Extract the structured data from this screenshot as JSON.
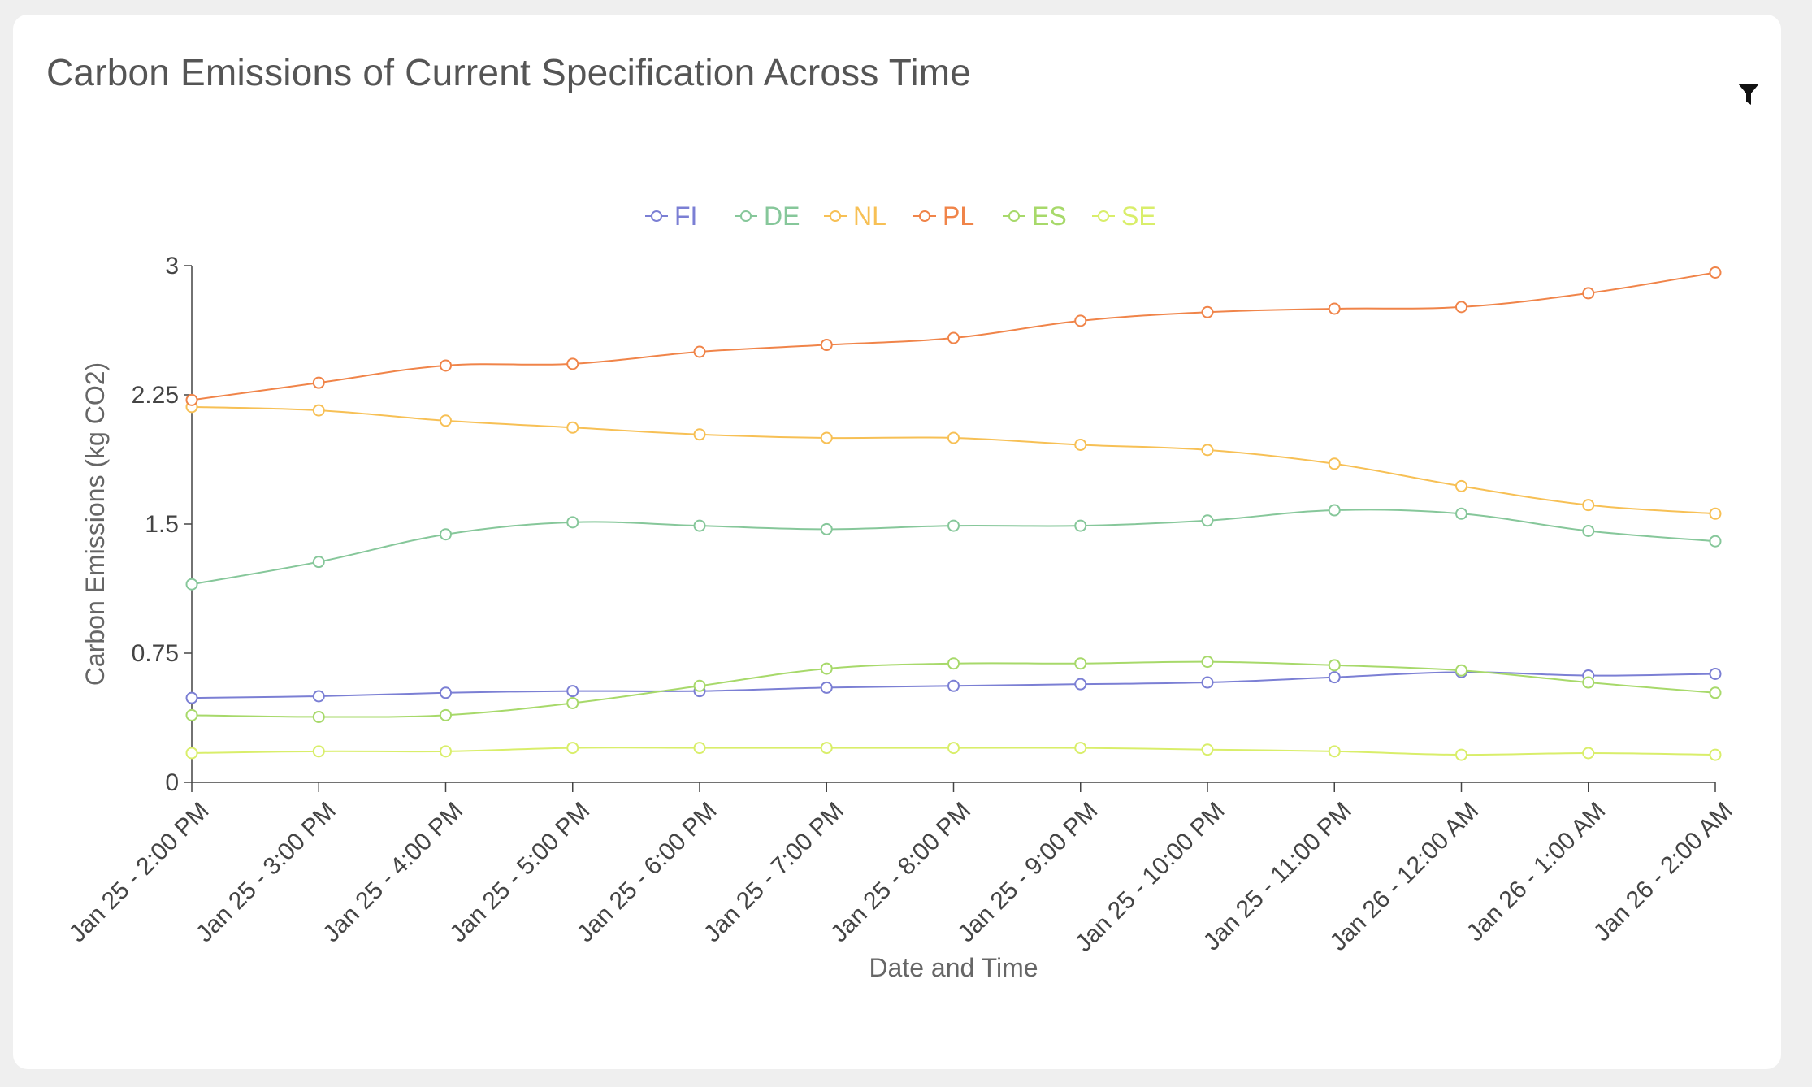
{
  "card": {
    "title": "Carbon Emissions of Current Specification Across Time",
    "filter_icon": "filter-icon"
  },
  "chart_data": {
    "type": "line",
    "title": "Carbon Emissions of Current Specification Across Time",
    "xlabel": "Date and Time",
    "ylabel": "Carbon Emissions (kg CO2)",
    "ylim": [
      0,
      3
    ],
    "yticks": [
      0,
      0.75,
      1.5,
      2.25,
      3
    ],
    "ytick_labels": [
      "0",
      "0.75",
      "1.5",
      "2.25",
      "3"
    ],
    "categories": [
      "Jan 25 - 2:00 PM",
      "Jan 25 - 3:00 PM",
      "Jan 25 - 4:00 PM",
      "Jan 25 - 5:00 PM",
      "Jan 25 - 6:00 PM",
      "Jan 25 - 7:00 PM",
      "Jan 25 - 8:00 PM",
      "Jan 25 - 9:00 PM",
      "Jan 25 - 10:00 PM",
      "Jan 25 - 11:00 PM",
      "Jan 26 - 12:00 AM",
      "Jan 26 - 1:00 AM",
      "Jan 26 - 2:00 AM"
    ],
    "legend_position": "top-center",
    "grid": false,
    "series": [
      {
        "name": "FI",
        "color": "#7b7fd4",
        "values": [
          0.49,
          0.5,
          0.52,
          0.53,
          0.53,
          0.55,
          0.56,
          0.57,
          0.58,
          0.61,
          0.64,
          0.62,
          0.63
        ]
      },
      {
        "name": "DE",
        "color": "#86c79a",
        "values": [
          1.15,
          1.28,
          1.44,
          1.51,
          1.49,
          1.47,
          1.49,
          1.49,
          1.52,
          1.58,
          1.56,
          1.46,
          1.4
        ]
      },
      {
        "name": "NL",
        "color": "#f7c055",
        "values": [
          2.18,
          2.16,
          2.1,
          2.06,
          2.02,
          2.0,
          2.0,
          1.96,
          1.93,
          1.85,
          1.72,
          1.61,
          1.56
        ]
      },
      {
        "name": "PL",
        "color": "#f08449",
        "values": [
          2.22,
          2.32,
          2.42,
          2.43,
          2.5,
          2.54,
          2.58,
          2.68,
          2.73,
          2.75,
          2.76,
          2.84,
          2.96
        ]
      },
      {
        "name": "ES",
        "color": "#a7d96a",
        "values": [
          0.39,
          0.38,
          0.39,
          0.46,
          0.56,
          0.66,
          0.69,
          0.69,
          0.7,
          0.68,
          0.65,
          0.58,
          0.52
        ]
      },
      {
        "name": "SE",
        "color": "#d9ee6a",
        "values": [
          0.17,
          0.18,
          0.18,
          0.2,
          0.2,
          0.2,
          0.2,
          0.2,
          0.19,
          0.18,
          0.16,
          0.17,
          0.16
        ]
      }
    ]
  }
}
